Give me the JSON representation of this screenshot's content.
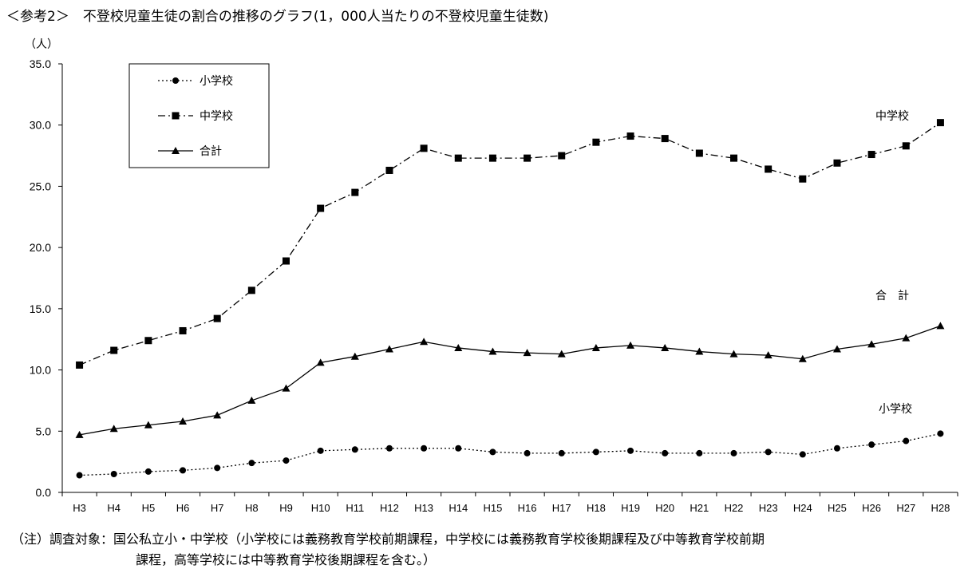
{
  "title": "＜参考2＞　不登校児童生徒の割合の推移のグラフ(1，000人当たりの不登校児童生徒数)",
  "note": {
    "line1": "（注）調査対象：国公私立小・中学校（小学校には義務教育学校前期課程，中学校には義務教育学校後期課程及び中等教育学校前期",
    "line2": "課程，高等学校には中等教育学校後期課程を含む。）"
  },
  "chart_data": {
    "type": "line",
    "unit_label": "（人）",
    "categories": [
      "H3",
      "H4",
      "H5",
      "H6",
      "H7",
      "H8",
      "H9",
      "H10",
      "H11",
      "H12",
      "H13",
      "H14",
      "H15",
      "H16",
      "H17",
      "H18",
      "H19",
      "H20",
      "H21",
      "H22",
      "H23",
      "H24",
      "H25",
      "H26",
      "H27",
      "H28"
    ],
    "ylim": [
      0,
      35
    ],
    "yticks": [
      "0.0",
      "5.0",
      "10.0",
      "15.0",
      "20.0",
      "25.0",
      "30.0",
      "35.0"
    ],
    "grid": false,
    "legend_position": "top-left",
    "series": [
      {
        "name": "小学校",
        "end_label": "小学校",
        "marker": "circle",
        "dash": "dotted",
        "values": [
          1.4,
          1.5,
          1.7,
          1.8,
          2.0,
          2.4,
          2.6,
          3.4,
          3.5,
          3.6,
          3.6,
          3.6,
          3.3,
          3.2,
          3.2,
          3.3,
          3.4,
          3.2,
          3.2,
          3.2,
          3.3,
          3.1,
          3.6,
          3.9,
          4.2,
          4.8
        ]
      },
      {
        "name": "中学校",
        "end_label": "中学校",
        "marker": "square",
        "dash": "dashdot",
        "values": [
          10.4,
          11.6,
          12.4,
          13.2,
          14.2,
          16.5,
          18.9,
          23.2,
          24.5,
          26.3,
          28.1,
          27.3,
          27.3,
          27.3,
          27.5,
          28.6,
          29.1,
          28.9,
          27.7,
          27.3,
          26.4,
          25.6,
          26.9,
          27.6,
          28.3,
          30.2
        ]
      },
      {
        "name": "合計",
        "end_label": "合　計",
        "marker": "triangle",
        "dash": "solid",
        "values": [
          4.7,
          5.2,
          5.5,
          5.8,
          6.3,
          7.5,
          8.5,
          10.6,
          11.1,
          11.7,
          12.3,
          11.8,
          11.5,
          11.4,
          11.3,
          11.8,
          12.0,
          11.8,
          11.5,
          11.3,
          11.2,
          10.9,
          11.7,
          12.1,
          12.6,
          13.6
        ]
      }
    ]
  }
}
